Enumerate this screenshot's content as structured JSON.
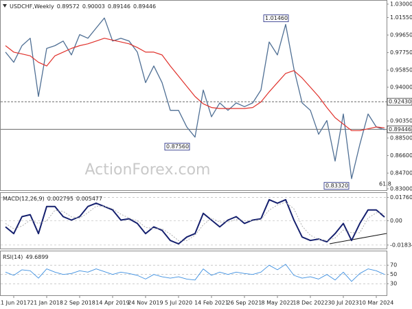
{
  "chart_data": [
    {
      "type": "line",
      "title": "USDCHF,Weekly",
      "ohlc": [
        0.89572,
        0.90003,
        0.89146,
        0.89446
      ],
      "watermark": "ActionForex.com",
      "categories": [
        null,
        "11 Jun 2017",
        null,
        null,
        null,
        "21 Jan 2018",
        null,
        null,
        null,
        "2 Sep 2018",
        null,
        null,
        null,
        "14 Apr 2019",
        null,
        null,
        null,
        "24 Nov 2019",
        null,
        null,
        null,
        "5 Jul 2020",
        null,
        null,
        null,
        "14 Feb 2021",
        null,
        null,
        null,
        "26 Sep 2021",
        null,
        null,
        null,
        "8 May 2022",
        null,
        null,
        null,
        "18 Dec 2022",
        null,
        null,
        null,
        "30 Jul 2023",
        null,
        null,
        null,
        "10 Mar 2024",
        null
      ],
      "series": [
        {
          "name": "Close",
          "color": "#4f6f94",
          "width": 1.3,
          "values": [
            0.978,
            0.967,
            0.985,
            0.993,
            0.93,
            0.982,
            0.985,
            0.99,
            0.975,
            0.997,
            0.993,
            1.004,
            1.015,
            0.99,
            0.993,
            0.99,
            0.978,
            0.945,
            0.963,
            0.945,
            0.915,
            0.915,
            0.897,
            0.886,
            0.937,
            0.908,
            0.923,
            0.915,
            0.923,
            0.919,
            0.923,
            0.937,
            0.989,
            0.975,
            1.008,
            0.96,
            0.923,
            0.915,
            0.889,
            0.904,
            0.86,
            0.911,
            0.841,
            0.878,
            0.911,
            0.897,
            0.894
          ]
        },
        {
          "name": "MA",
          "color": "#e0302a",
          "width": 1.2,
          "values": [
            0.985,
            0.978,
            0.976,
            0.974,
            0.967,
            0.963,
            0.974,
            0.978,
            0.982,
            0.985,
            0.987,
            0.99,
            0.993,
            0.991,
            0.989,
            0.987,
            0.983,
            0.978,
            0.978,
            0.975,
            0.963,
            0.952,
            0.941,
            0.93,
            0.922,
            0.918,
            0.917,
            0.917,
            0.917,
            0.917,
            0.918,
            0.924,
            0.935,
            0.945,
            0.955,
            0.958,
            0.95,
            0.94,
            0.93,
            0.918,
            0.907,
            0.9,
            0.893,
            0.893,
            0.895,
            0.897,
            0.896
          ]
        }
      ],
      "ylim": [
        0.8285,
        1.0337
      ],
      "yticks": [
        {
          "value": 0.83,
          "label": "0.83000"
        },
        {
          "value": 0.847,
          "label": "0.84700"
        },
        {
          "value": 0.866,
          "label": "0.86600"
        },
        {
          "value": 0.885,
          "label": "0.88500"
        },
        {
          "value": 0.9035,
          "label": "0.90350"
        },
        {
          "value": 0.94,
          "label": "0.94000"
        },
        {
          "value": 0.9585,
          "label": "0.95850"
        },
        {
          "value": 0.9775,
          "label": "0.97750"
        },
        {
          "value": 0.9965,
          "label": "0.99650"
        },
        {
          "value": 1.0155,
          "label": "1.01550"
        },
        {
          "value": 1.03,
          "label": "1.03000"
        }
      ],
      "hlines": [
        {
          "value": 0.9243,
          "label": "0.92430",
          "style": "dashed"
        },
        {
          "value": 0.89446,
          "label": "0.89446",
          "style": "solid"
        }
      ],
      "annotations": [
        {
          "value": 1.0146,
          "label": "1.01460"
        },
        {
          "value": 0.8756,
          "label": "0.87560"
        },
        {
          "value": 0.8332,
          "label": "0.83320"
        }
      ],
      "fib_label": "61.8"
    },
    {
      "type": "line",
      "title": "MACD(12,26,9)",
      "readout": [
        0.002795,
        0.005477
      ],
      "series": [
        {
          "name": "MACD",
          "color": "#15206e",
          "width": 2,
          "values": [
            -0.0046,
            -0.0097,
            0.0031,
            0.0046,
            -0.0097,
            0.0108,
            0.0108,
            0.0031,
            0.0005,
            0.0031,
            0.0108,
            0.0133,
            0.0108,
            0.0082,
            0.0005,
            0.0015,
            -0.002,
            -0.0097,
            -0.0046,
            -0.0072,
            -0.0149,
            -0.0174,
            -0.0123,
            -0.0097,
            0.0056,
            0.0005,
            -0.0046,
            0.0005,
            0.0031,
            -0.002,
            0.0005,
            0.0015,
            0.0159,
            0.0133,
            0.0159,
            0.0005,
            -0.0123,
            -0.0149,
            -0.0138,
            -0.0159,
            -0.0097,
            -0.002,
            -0.0149,
            -0.002,
            0.0082,
            0.0082,
            0.0028
          ]
        },
        {
          "name": "Signal",
          "color": "#b0b0b0",
          "width": 1,
          "dash": true,
          "values": [
            -0.002,
            -0.006,
            -0.004,
            0.0005,
            -0.002,
            0.0,
            0.008,
            0.007,
            0.003,
            0.002,
            0.006,
            0.011,
            0.011,
            0.009,
            0.005,
            0.002,
            0.0,
            -0.005,
            -0.006,
            -0.006,
            -0.01,
            -0.015,
            -0.015,
            -0.011,
            -0.003,
            0.002,
            -0.001,
            -0.001,
            0.001,
            0.0,
            0.0,
            0.001,
            0.008,
            0.012,
            0.014,
            0.009,
            -0.004,
            -0.011,
            -0.014,
            -0.015,
            -0.013,
            -0.007,
            -0.009,
            -0.009,
            0.002,
            0.006,
            0.0055
          ]
        }
      ],
      "ylim": [
        -0.021,
        0.021
      ],
      "yticks": [
        {
          "value": 0.0176,
          "label": "0.01760"
        },
        {
          "value": 0,
          "label": "0.00"
        },
        {
          "value": -0.01834,
          "label": "-0.01834"
        }
      ]
    },
    {
      "type": "line",
      "title": "RSI(14)",
      "readout": [
        49.6899
      ],
      "series": [
        {
          "name": "RSI",
          "color": "#3d8fe0",
          "width": 0.9,
          "values": [
            55,
            48,
            60,
            58,
            42,
            62,
            55,
            50,
            52,
            58,
            55,
            62,
            56,
            50,
            55,
            52,
            48,
            40,
            50,
            45,
            42,
            45,
            40,
            38,
            62,
            48,
            55,
            50,
            55,
            52,
            50,
            55,
            70,
            60,
            72,
            48,
            42,
            45,
            40,
            50,
            38,
            55,
            35,
            52,
            62,
            58,
            50
          ]
        }
      ],
      "ylim": [
        5,
        100
      ],
      "yticks": [
        70,
        50,
        30
      ]
    }
  ]
}
